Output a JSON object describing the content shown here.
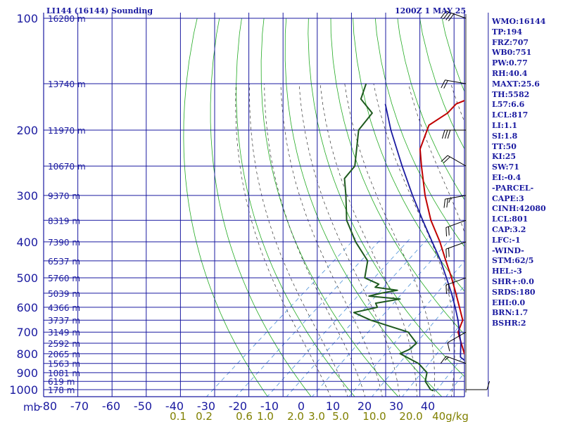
{
  "header": {
    "station": "LI144 (16144) Sounding",
    "time": "1200Z  1 MAY 25"
  },
  "indices": [
    "WMO:16144",
    "TP:194",
    "FRZ:707",
    "WB0:751",
    "PW:0.77",
    "RH:40.4",
    "MAXT:25.6",
    "TH:5582",
    "L57:6.6",
    "LCL:817",
    "LI:1.1",
    "SI:1.8",
    "TT:50",
    "KI:25",
    "SW:71",
    "EI:-0.4",
    "-PARCEL-",
    "CAPE:3",
    "CINH:42080",
    "LCL:801",
    "CAP:3.2",
    "LFC:-1",
    "-WIND-",
    "STM:62/5",
    "HEL:-3",
    "SHR+:0.0",
    "SRDS:180",
    "EHI:0.0",
    "BRN:1.7",
    "BSHR:2"
  ],
  "colors": {
    "grid": "#1a1aa0",
    "temperature": "#c00000",
    "dewpoint": "#1e5a1e",
    "parcel": "#1a1aa0",
    "dry_adiabat": "#22aa22",
    "moist_adiabat": "#333333",
    "mixing_ratio": "#4a90d8",
    "text": "#1a1aa0",
    "mixing_label": "#808000"
  },
  "chart_data": {
    "type": "line",
    "diagram": "skew-T log-p",
    "pressure_levels_mb": [
      100,
      200,
      300,
      400,
      500,
      600,
      700,
      800,
      900,
      1000
    ],
    "pressure_unit_label": "mb",
    "temperature_ticks_c": [
      -80,
      -70,
      -60,
      -50,
      -40,
      -30,
      -20,
      -10,
      0,
      10,
      20,
      30,
      40
    ],
    "temperature_tick_labels": [
      "-80",
      "-70",
      "-60",
      "-50",
      "-40",
      "-30",
      "-20",
      "-10",
      "0",
      "10",
      "20",
      "30",
      "40"
    ],
    "mixing_ratio_labels": [
      "0.1",
      "0.2",
      "0.6",
      "1.0",
      "2.0",
      "3.0",
      "5.0",
      "10.0",
      "20.0",
      "40g/kg"
    ],
    "mixing_ratio_values": [
      0.1,
      0.2,
      0.6,
      1.0,
      2.0,
      3.0,
      5.0,
      10.0,
      20.0,
      40.0
    ],
    "mixing_ratio_extra": [
      0.4,
      8.0,
      30.0
    ],
    "height_levels": [
      {
        "p": 100,
        "label": "16280 m"
      },
      {
        "p": 150,
        "label": "13740 m"
      },
      {
        "p": 200,
        "label": "11970 m"
      },
      {
        "p": 250,
        "label": "10670 m"
      },
      {
        "p": 300,
        "label": "9370 m"
      },
      {
        "p": 350,
        "label": "8319 m"
      },
      {
        "p": 400,
        "label": "7390 m"
      },
      {
        "p": 450,
        "label": "6537 m"
      },
      {
        "p": 500,
        "label": "5760 m"
      },
      {
        "p": 550,
        "label": "5039 m"
      },
      {
        "p": 600,
        "label": "4366 m"
      },
      {
        "p": 650,
        "label": "3737 m"
      },
      {
        "p": 700,
        "label": "3149 m"
      },
      {
        "p": 750,
        "label": "2592 m"
      },
      {
        "p": 800,
        "label": "2065 m"
      },
      {
        "p": 850,
        "label": "1563 m"
      },
      {
        "p": 900,
        "label": "1081 m"
      },
      {
        "p": 950,
        "label": "619 m"
      },
      {
        "p": 1000,
        "label": "178 m"
      }
    ],
    "series": [
      {
        "key": "temperature",
        "points": [
          [
            1007,
            25.6
          ],
          [
            1000,
            24.0
          ],
          [
            950,
            19.6
          ],
          [
            900,
            15.5
          ],
          [
            850,
            11.2
          ],
          [
            800,
            7.0
          ],
          [
            750,
            3.4
          ],
          [
            700,
            -0.4
          ],
          [
            650,
            -2.6
          ],
          [
            600,
            -6.9
          ],
          [
            550,
            -11.6
          ],
          [
            500,
            -16.8
          ],
          [
            450,
            -22.8
          ],
          [
            400,
            -29.4
          ],
          [
            350,
            -37.4
          ],
          [
            300,
            -45.6
          ],
          [
            250,
            -54.5
          ],
          [
            225,
            -59.5
          ],
          [
            194,
            -64.0
          ],
          [
            180,
            -63.0
          ],
          [
            170,
            -63.5
          ],
          [
            160,
            -60.5
          ],
          [
            150,
            -61.0
          ],
          [
            140,
            -63.0
          ],
          [
            125,
            -63.5
          ],
          [
            110,
            -66.5
          ],
          [
            102,
            -67.0
          ]
        ]
      },
      {
        "key": "dewpoint",
        "points": [
          [
            1007,
            10.0
          ],
          [
            1000,
            9.0
          ],
          [
            950,
            5.5
          ],
          [
            900,
            3.5
          ],
          [
            850,
            -1.0
          ],
          [
            800,
            -8.0
          ],
          [
            780,
            -7.0
          ],
          [
            750,
            -7.0
          ],
          [
            700,
            -12.0
          ],
          [
            650,
            -24.0
          ],
          [
            620,
            -30.0
          ],
          [
            600,
            -26.0
          ],
          [
            585,
            -27.5
          ],
          [
            570,
            -23.0
          ],
          [
            560,
            -31.0
          ],
          [
            550,
            -29.0
          ],
          [
            540,
            -26.0
          ],
          [
            530,
            -32.0
          ],
          [
            520,
            -32.0
          ],
          [
            500,
            -37.0
          ],
          [
            450,
            -41.0
          ],
          [
            400,
            -49.0
          ],
          [
            350,
            -57.0
          ],
          [
            300,
            -64.0
          ],
          [
            270,
            -69.0
          ],
          [
            250,
            -70.0
          ],
          [
            200,
            -79.0
          ],
          [
            180,
            -80.5
          ],
          [
            165,
            -87.0
          ],
          [
            150,
            -90.0
          ]
        ]
      },
      {
        "key": "parcel",
        "points": [
          [
            1007,
            25.6
          ],
          [
            950,
            20.7
          ],
          [
            900,
            15.8
          ],
          [
            850,
            10.6
          ],
          [
            817,
            7.0
          ],
          [
            800,
            6.1
          ],
          [
            750,
            3.3
          ],
          [
            700,
            -0.1
          ],
          [
            650,
            -3.7
          ],
          [
            600,
            -7.9
          ],
          [
            550,
            -12.6
          ],
          [
            500,
            -18.0
          ],
          [
            450,
            -24.0
          ],
          [
            400,
            -31.2
          ],
          [
            350,
            -39.3
          ],
          [
            300,
            -48.5
          ],
          [
            250,
            -59.0
          ],
          [
            200,
            -71.5
          ],
          [
            170,
            -80.0
          ]
        ]
      }
    ],
    "wind_barbs": [
      {
        "p": 1000,
        "dir": 90,
        "spd": 10
      },
      {
        "p": 850,
        "dir": 290,
        "spd": 15
      },
      {
        "p": 700,
        "dir": 240,
        "spd": 10
      },
      {
        "p": 500,
        "dir": 250,
        "spd": 20
      },
      {
        "p": 400,
        "dir": 250,
        "spd": 20
      },
      {
        "p": 350,
        "dir": 250,
        "spd": 20
      },
      {
        "p": 300,
        "dir": 260,
        "spd": 25
      },
      {
        "p": 250,
        "dir": 300,
        "spd": 20
      },
      {
        "p": 200,
        "dir": 270,
        "spd": 30
      },
      {
        "p": 150,
        "dir": 280,
        "spd": 20
      },
      {
        "p": 100,
        "dir": 290,
        "spd": 40
      }
    ]
  }
}
